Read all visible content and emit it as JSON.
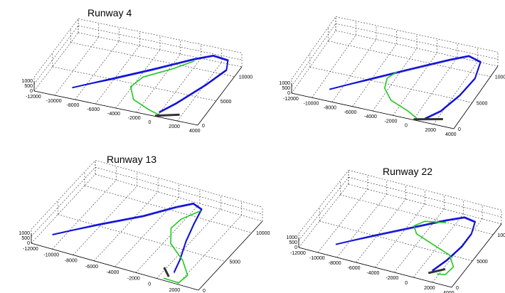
{
  "figure": {
    "panels": [
      {
        "title": "Runway 4"
      },
      {
        "title": ""
      },
      {
        "title": "Runway 13"
      },
      {
        "title": "Runway 22"
      }
    ]
  },
  "chart_data": [
    {
      "type": "line3d",
      "title": "Runway 4",
      "xlim": [
        -12000,
        4000
      ],
      "ylim": [
        0,
        12000
      ],
      "zlim": [
        0,
        1000
      ],
      "x_ticks": [
        "-12000",
        "-10000",
        "-8000",
        "-6000",
        "-4000",
        "-2000",
        "0",
        "2000",
        "4000"
      ],
      "y_ticks": [
        "0",
        "5000",
        "10000"
      ],
      "z_ticks": [
        "1000",
        "500",
        "0"
      ],
      "grid": true,
      "colors": {
        "flown": "#1010d8",
        "planned": "#22c822",
        "runway": "#333333"
      },
      "series": [
        {
          "color": "#1010d8",
          "points": [
            [
              -9000,
              2000,
              0
            ],
            [
              -6000,
              4600,
              300
            ],
            [
              -3000,
              7200,
              600
            ],
            [
              0,
              10000,
              900
            ],
            [
              1500,
              11200,
              1000
            ],
            [
              3000,
              11000,
              950
            ],
            [
              3400,
              9500,
              800
            ],
            [
              2500,
              6500,
              600
            ],
            [
              1000,
              2500,
              350
            ],
            [
              0,
              600,
              150
            ]
          ]
        },
        {
          "color": "#22c822",
          "points": [
            [
              0,
              10200,
              600
            ],
            [
              -1500,
              8200,
              450
            ],
            [
              -3500,
              6000,
              300
            ],
            [
              -4000,
              4000,
              200
            ],
            [
              -3000,
              2000,
              100
            ],
            [
              -1000,
              800,
              50
            ],
            [
              300,
              300,
              0
            ]
          ]
        },
        {
          "color": "#333333",
          "points": [
            [
              -200,
              100,
              0
            ],
            [
              1800,
              1200,
              0
            ]
          ]
        }
      ]
    },
    {
      "type": "line3d",
      "title": "",
      "xlim": [
        -12000,
        4000
      ],
      "ylim": [
        0,
        12000
      ],
      "zlim": [
        0,
        1000
      ],
      "x_ticks": [
        "-12000",
        "-10000",
        "-8000",
        "-6000",
        "-4000",
        "-2000",
        "0",
        "2000",
        "4000"
      ],
      "y_ticks": [
        "0",
        "5000",
        "10000"
      ],
      "z_ticks": [
        "1000",
        "500",
        "0"
      ],
      "grid": true,
      "colors": {
        "flown": "#1010d8",
        "planned": "#22c822",
        "runway": "#333333"
      },
      "series": [
        {
          "color": "#1010d8",
          "points": [
            [
              -9000,
              2000,
              0
            ],
            [
              -6000,
              4700,
              300
            ],
            [
              -3000,
              7300,
              600
            ],
            [
              0,
              9800,
              900
            ],
            [
              1500,
              11000,
              1000
            ],
            [
              2800,
              10600,
              900
            ],
            [
              3200,
              8000,
              700
            ],
            [
              2800,
              5000,
              500
            ],
            [
              2000,
              2000,
              300
            ],
            [
              1000,
              400,
              150
            ]
          ]
        },
        {
          "color": "#22c822",
          "points": [
            [
              -4000,
              6500,
              500
            ],
            [
              -4500,
              5300,
              400
            ],
            [
              -4200,
              3800,
              250
            ],
            [
              -3000,
              2200,
              150
            ],
            [
              -1000,
              1200,
              60
            ],
            [
              200,
              400,
              0
            ]
          ]
        },
        {
          "color": "#333333",
          "points": [
            [
              0,
              100,
              0
            ],
            [
              2500,
              1200,
              0
            ]
          ]
        }
      ]
    },
    {
      "type": "line3d",
      "title": "Runway 13",
      "xlim": [
        -12000,
        4000
      ],
      "ylim": [
        0,
        12000
      ],
      "zlim": [
        0,
        1000
      ],
      "x_ticks": [
        "-12000",
        "-10000",
        "-8000",
        "-6000",
        "-4000",
        "-2000",
        "0",
        "2000",
        "4000"
      ],
      "y_ticks": [
        "0",
        "5000",
        "10000"
      ],
      "z_ticks": [
        "1000",
        "500",
        "0"
      ],
      "grid": true,
      "colors": {
        "flown": "#1010d8",
        "planned": "#22c822",
        "runway": "#333333"
      },
      "series": [
        {
          "color": "#1010d8",
          "points": [
            [
              -11000,
              2000,
              0
            ],
            [
              -8000,
              4800,
              300
            ],
            [
              -5000,
              7300,
              600
            ],
            [
              -3000,
              9400,
              850
            ],
            [
              -1800,
              10400,
              1000
            ],
            [
              -800,
              10000,
              950
            ],
            [
              -500,
              8000,
              750
            ],
            [
              0,
              5500,
              550
            ],
            [
              700,
              3000,
              350
            ],
            [
              1000,
              1300,
              150
            ]
          ]
        },
        {
          "color": "#22c822",
          "points": [
            [
              -1000,
              10200,
              600
            ],
            [
              -2000,
              8500,
              450
            ],
            [
              -2200,
              7000,
              350
            ],
            [
              -1200,
              5000,
              250
            ],
            [
              800,
              3300,
              150
            ],
            [
              2200,
              1500,
              80
            ],
            [
              2000,
              200,
              40
            ],
            [
              500,
              300,
              0
            ]
          ]
        },
        {
          "color": "#333333",
          "points": [
            [
              -200,
              1800,
              0
            ],
            [
              800,
              700,
              0
            ]
          ]
        }
      ]
    },
    {
      "type": "line3d",
      "title": "Runway 22",
      "xlim": [
        -12000,
        4000
      ],
      "ylim": [
        0,
        12000
      ],
      "zlim": [
        0,
        1000
      ],
      "x_ticks": [
        "-12000",
        "-10000",
        "-8000",
        "-6000",
        "-4000",
        "-2000",
        "0",
        "2000",
        "4000"
      ],
      "y_ticks": [
        "0",
        "5000",
        "10000"
      ],
      "z_ticks": [
        "1000",
        "500",
        "0"
      ],
      "grid": true,
      "colors": {
        "flown": "#1010d8",
        "planned": "#22c822",
        "runway": "#333333"
      },
      "series": [
        {
          "color": "#1010d8",
          "points": [
            [
              -9000,
              2000,
              0
            ],
            [
              -6000,
              4600,
              300
            ],
            [
              -3000,
              7000,
              600
            ],
            [
              -500,
              9000,
              850
            ],
            [
              1000,
              10000,
              1000
            ],
            [
              2200,
              9800,
              950
            ],
            [
              2600,
              8000,
              800
            ],
            [
              2500,
              6000,
              600
            ],
            [
              2000,
              3500,
              400
            ],
            [
              1300,
              1500,
              200
            ]
          ]
        },
        {
          "color": "#22c822",
          "points": [
            [
              -500,
              9000,
              600
            ],
            [
              -2500,
              8500,
              500
            ],
            [
              -3200,
              7500,
              400
            ],
            [
              -2500,
              6500,
              300
            ],
            [
              -500,
              5700,
              200
            ],
            [
              1700,
              4800,
              120
            ],
            [
              2800,
              3200,
              60
            ],
            [
              2600,
              1700,
              30
            ],
            [
              1800,
              1500,
              0
            ]
          ]
        },
        {
          "color": "#333333",
          "points": [
            [
              2200,
              2600,
              0
            ],
            [
              1000,
              1300,
              0
            ]
          ]
        }
      ]
    }
  ]
}
